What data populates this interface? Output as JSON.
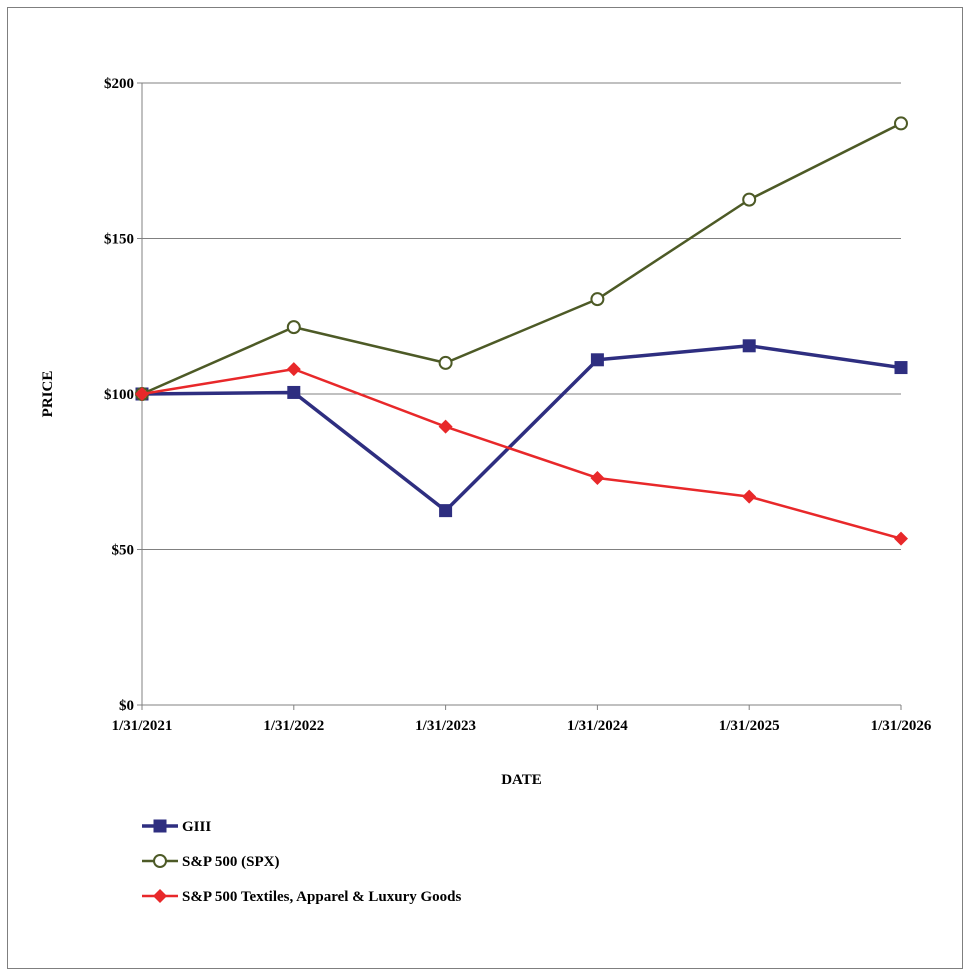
{
  "chart_data": {
    "type": "line",
    "xlabel": "DATE",
    "ylabel": "PRICE",
    "categories": [
      "1/31/2021",
      "1/31/2022",
      "1/31/2023",
      "1/31/2024",
      "1/31/2025",
      "1/31/2026"
    ],
    "ylim": [
      0,
      200
    ],
    "yticks": [
      0,
      50,
      100,
      150,
      200
    ],
    "ytick_labels": [
      "$0",
      "$50",
      "$100",
      "$150",
      "$200"
    ],
    "grid": "horizontal",
    "legend_position": "bottom-left",
    "series": [
      {
        "name": "GIII",
        "color": "#2e2e80",
        "marker": "square",
        "values": [
          100,
          100.5,
          62.5,
          111,
          115.5,
          108.5
        ]
      },
      {
        "name": "S&P 500 (SPX)",
        "color": "#4d5a26",
        "marker": "circle-open",
        "values": [
          100,
          121.5,
          110,
          130.5,
          162.5,
          187
        ]
      },
      {
        "name": "S&P 500 Textiles, Apparel & Luxury Goods",
        "color": "#e8282a",
        "marker": "diamond",
        "values": [
          100,
          108,
          89.5,
          73,
          67,
          53.5
        ]
      }
    ]
  }
}
